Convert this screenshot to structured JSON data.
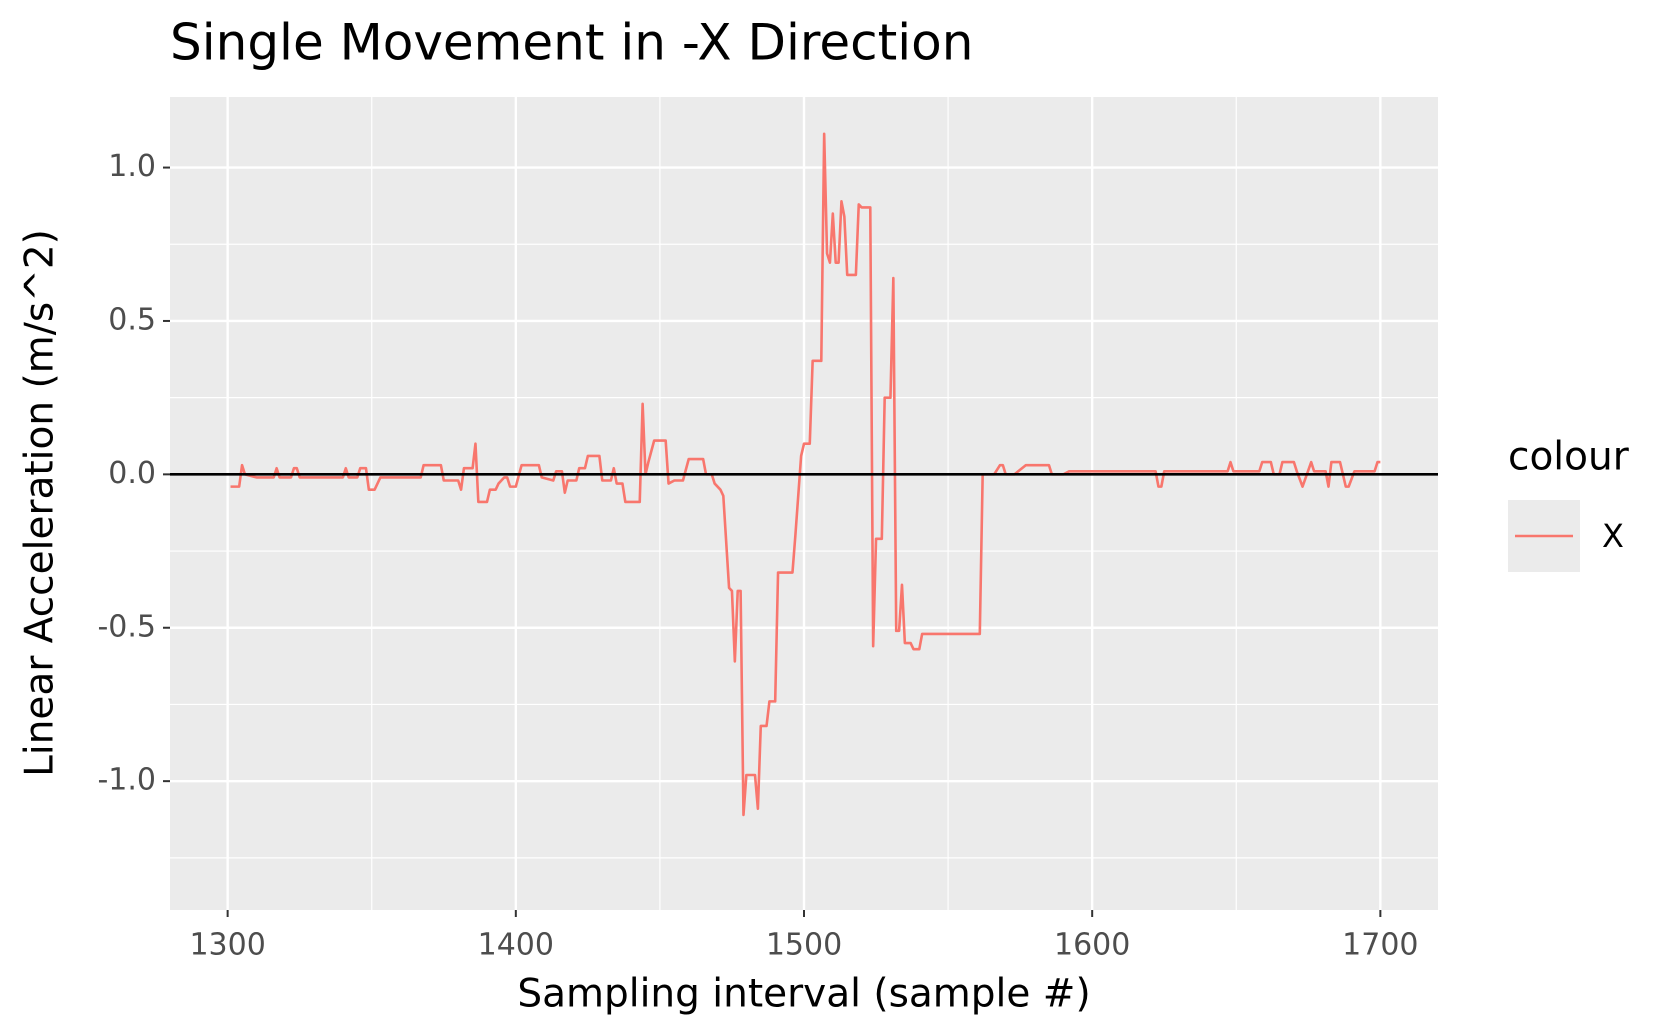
{
  "chart_data": {
    "type": "line",
    "title": "Single Movement in -X Direction",
    "xlabel": "Sampling interval (sample #)",
    "ylabel": "Linear Acceleration (m/s^2)",
    "legend_title": "colour",
    "legend_position": "right",
    "grid": true,
    "hline": 0,
    "xlim": [
      1280,
      1720
    ],
    "ylim": [
      -1.42,
      1.23
    ],
    "xticks": [
      1300,
      1400,
      1500,
      1600,
      1700
    ],
    "yticks": [
      {
        "value": -1.0,
        "label": "-1.0"
      },
      -0.5,
      {
        "value": 0.0,
        "label": "0.0"
      },
      0.5,
      {
        "value": 1.0,
        "label": "1.0"
      }
    ],
    "x_minor_ticks": [
      1350,
      1450,
      1550,
      1650
    ],
    "y_minor_ticks": [
      -1.25,
      -0.75,
      -0.25,
      0.25,
      0.75
    ],
    "x": [
      1301,
      1304,
      1305,
      1306,
      1310,
      1316,
      1317,
      1318,
      1322,
      1323,
      1324,
      1325,
      1340,
      1341,
      1342,
      1345,
      1346,
      1348,
      1349,
      1351,
      1353,
      1367,
      1368,
      1374,
      1375,
      1380,
      1381,
      1382,
      1385,
      1386,
      1387,
      1390,
      1391,
      1393,
      1394,
      1396,
      1397,
      1398,
      1400,
      1402,
      1408,
      1409,
      1413,
      1414,
      1416,
      1417,
      1418,
      1421,
      1422,
      1424,
      1425,
      1429,
      1430,
      1433,
      1434,
      1435,
      1437,
      1438,
      1443,
      1444,
      1445,
      1446,
      1448,
      1452,
      1453,
      1455,
      1458,
      1460,
      1465,
      1466,
      1468,
      1469,
      1471,
      1472,
      1474,
      1475,
      1476,
      1477,
      1478,
      1479,
      1480,
      1483,
      1484,
      1485,
      1487,
      1488,
      1490,
      1491,
      1496,
      1497,
      1499,
      1500,
      1502,
      1503,
      1506,
      1507,
      1508,
      1509,
      1510,
      1511,
      1512,
      1513,
      1514,
      1515,
      1518,
      1519,
      1520,
      1523,
      1524,
      1525,
      1527,
      1528,
      1530,
      1531,
      1532,
      1533,
      1534,
      1535,
      1537,
      1538,
      1540,
      1541,
      1561,
      1562,
      1566,
      1568,
      1569,
      1570,
      1573,
      1577,
      1585,
      1586,
      1590,
      1592,
      1622,
      1623,
      1624,
      1625,
      1647,
      1648,
      1649,
      1658,
      1659,
      1662,
      1663,
      1665,
      1666,
      1670,
      1671,
      1673,
      1676,
      1677,
      1681,
      1682,
      1683,
      1686,
      1687,
      1688,
      1689,
      1691,
      1698,
      1699,
      1700
    ],
    "series": [
      {
        "name": "X",
        "color": "#F8766D",
        "values": [
          -0.04,
          -0.04,
          0.03,
          0.0,
          -0.01,
          -0.01,
          0.02,
          -0.01,
          -0.01,
          0.02,
          0.02,
          -0.01,
          -0.01,
          0.02,
          -0.01,
          -0.01,
          0.02,
          0.02,
          -0.05,
          -0.05,
          -0.01,
          -0.01,
          0.03,
          0.03,
          -0.02,
          -0.02,
          -0.05,
          0.02,
          0.02,
          0.1,
          -0.09,
          -0.09,
          -0.05,
          -0.05,
          -0.03,
          -0.01,
          -0.01,
          -0.04,
          -0.04,
          0.03,
          0.03,
          -0.01,
          -0.02,
          0.01,
          0.01,
          -0.06,
          -0.02,
          -0.02,
          0.02,
          0.02,
          0.06,
          0.06,
          -0.02,
          -0.02,
          0.02,
          -0.03,
          -0.03,
          -0.09,
          -0.09,
          0.23,
          0.0,
          0.04,
          0.11,
          0.11,
          -0.03,
          -0.02,
          -0.02,
          0.05,
          0.05,
          0.0,
          0.0,
          -0.03,
          -0.05,
          -0.07,
          -0.37,
          -0.38,
          -0.61,
          -0.38,
          -0.38,
          -1.11,
          -0.98,
          -0.98,
          -1.09,
          -0.82,
          -0.82,
          -0.74,
          -0.74,
          -0.32,
          -0.32,
          -0.2,
          0.06,
          0.1,
          0.1,
          0.37,
          0.37,
          1.11,
          0.72,
          0.69,
          0.85,
          0.69,
          0.69,
          0.89,
          0.84,
          0.65,
          0.65,
          0.88,
          0.87,
          0.87,
          -0.56,
          -0.21,
          -0.21,
          0.25,
          0.25,
          0.64,
          -0.51,
          -0.51,
          -0.36,
          -0.55,
          -0.55,
          -0.57,
          -0.57,
          -0.52,
          -0.52,
          0.0,
          0.0,
          0.03,
          0.03,
          0.0,
          0.0,
          0.03,
          0.03,
          0.0,
          0.0,
          0.01,
          0.01,
          -0.04,
          -0.04,
          0.01,
          0.01,
          0.04,
          0.01,
          0.01,
          0.04,
          0.04,
          0.0,
          0.0,
          0.04,
          0.04,
          0.01,
          -0.04,
          0.04,
          0.01,
          0.01,
          -0.04,
          0.04,
          0.04,
          0.0,
          -0.04,
          -0.04,
          0.01,
          0.01,
          0.04,
          0.04
        ]
      }
    ]
  }
}
